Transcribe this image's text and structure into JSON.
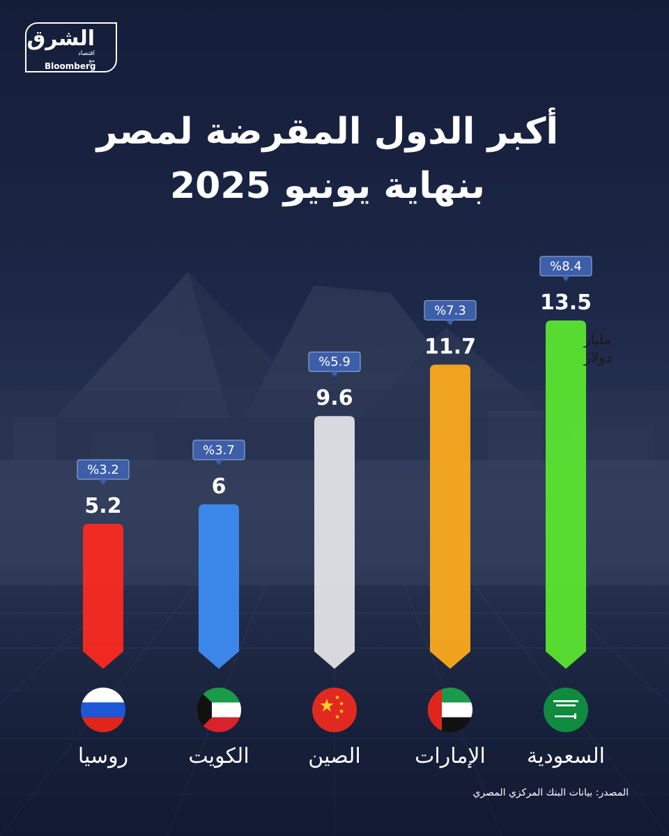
{
  "brand": {
    "name": "الشرق",
    "sub": "اقتصاد",
    "with": "مع",
    "partner": "Bloomberg"
  },
  "title_line1": "أكبر الدول المقرضة لمصر",
  "title_line2": "بنهاية يونيو 2025",
  "unit_label_line1": "مليار",
  "unit_label_line2": "دولار",
  "source": "المصدر: بيانات البنك المركزي المصري",
  "colors": {
    "background": "#182342",
    "badge": "#3d5ea8",
    "text": "#ffffff"
  },
  "chart_data": {
    "type": "bar",
    "title": "أكبر الدول المقرضة لمصر بنهاية يونيو 2025",
    "categories": [
      "روسيا",
      "الكويت",
      "الصين",
      "الإمارات",
      "السعودية"
    ],
    "values": [
      5.2,
      6,
      9.6,
      11.7,
      13.5
    ],
    "value_labels": [
      "5.2",
      "6",
      "9.6",
      "11.7",
      "13.5"
    ],
    "percent_labels": [
      "%3.2",
      "%3.7",
      "%5.9",
      "%7.3",
      "%8.4"
    ],
    "bar_colors": [
      "#ff2a1f",
      "#3d8ef5",
      "#e6e6ea",
      "#ffac1c",
      "#5be82f"
    ],
    "flags": [
      "russia-flag",
      "kuwait-flag",
      "china-flag",
      "uae-flag",
      "saudi-flag"
    ],
    "ylim": [
      0,
      13.5
    ],
    "grid": false
  }
}
